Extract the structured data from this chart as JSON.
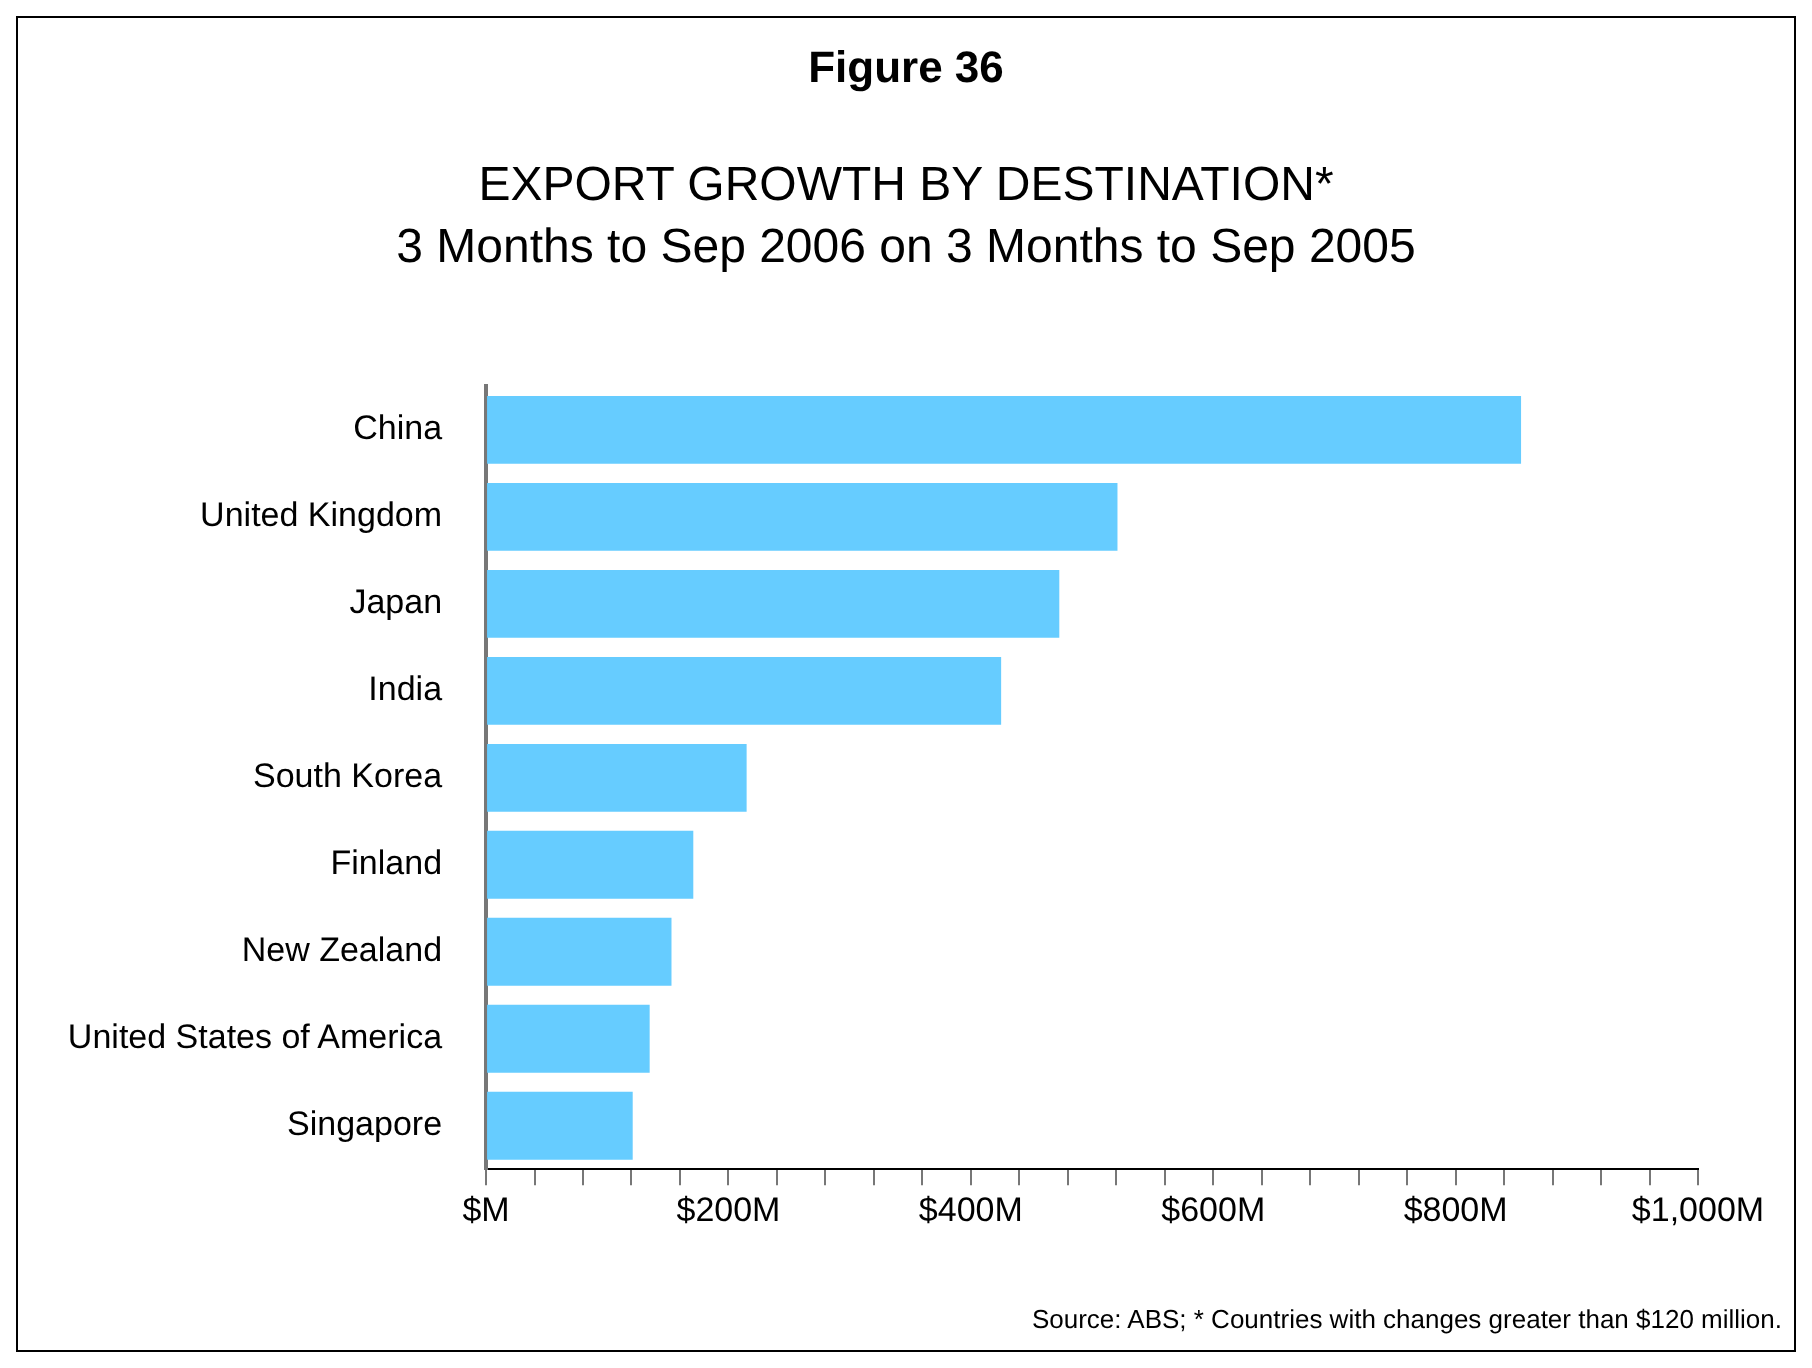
{
  "chart_data": {
    "type": "bar",
    "orientation": "horizontal",
    "title": "Figure 36",
    "subtitle": "EXPORT GROWTH BY DESTINATION*\n3 Months to Sep 2006 on 3 Months to Sep 2005",
    "categories": [
      "China",
      "United Kingdom",
      "Japan",
      "India",
      "South Korea",
      "Finland",
      "New Zealand",
      "United States of America",
      "Singapore"
    ],
    "values": [
      854,
      521,
      473,
      425,
      215,
      171,
      153,
      135,
      121
    ],
    "color": "#66ccff",
    "xlim": [
      0,
      1000
    ],
    "xticks": [
      {
        "value": 0,
        "label": "$M"
      },
      {
        "value": 40,
        "label": null
      },
      {
        "value": 80,
        "label": null
      },
      {
        "value": 120,
        "label": null
      },
      {
        "value": 160,
        "label": null
      },
      {
        "value": 200,
        "label": "$200M"
      },
      {
        "value": 240,
        "label": null
      },
      {
        "value": 280,
        "label": null
      },
      {
        "value": 320,
        "label": null
      },
      {
        "value": 360,
        "label": null
      },
      {
        "value": 400,
        "label": "$400M"
      },
      {
        "value": 440,
        "label": null
      },
      {
        "value": 480,
        "label": null
      },
      {
        "value": 520,
        "label": null
      },
      {
        "value": 560,
        "label": null
      },
      {
        "value": 600,
        "label": "$600M"
      },
      {
        "value": 640,
        "label": null
      },
      {
        "value": 680,
        "label": null
      },
      {
        "value": 720,
        "label": null
      },
      {
        "value": 760,
        "label": null
      },
      {
        "value": 800,
        "label": "$800M"
      },
      {
        "value": 840,
        "label": null
      },
      {
        "value": 880,
        "label": null
      },
      {
        "value": 920,
        "label": null
      },
      {
        "value": 960,
        "label": null
      },
      {
        "value": 1000,
        "label": "$1,000M"
      }
    ],
    "grid": false,
    "legend": false,
    "annotations": [
      "Source: ABS; * Countries with changes greater than $120 million."
    ]
  }
}
